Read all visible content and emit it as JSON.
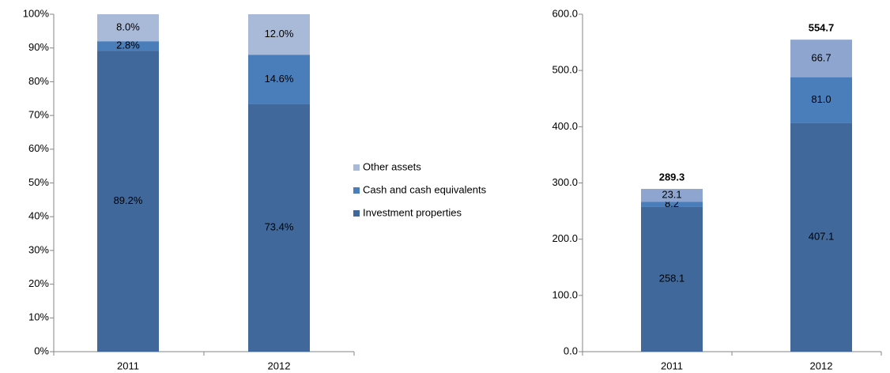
{
  "chart_data": [
    {
      "type": "bar",
      "stacked": true,
      "categories": [
        "2011",
        "2012"
      ],
      "series": [
        {
          "name": "Investment properties",
          "color": "#41689b",
          "values": [
            89.2,
            73.4
          ],
          "value_labels": [
            "89.2%",
            "73.4%"
          ]
        },
        {
          "name": "Cash and cash equivalents",
          "color": "#4a7ebb",
          "values": [
            2.8,
            14.6
          ],
          "value_labels": [
            "2.8%",
            "14.6%"
          ]
        },
        {
          "name": "Other assets",
          "color": "#a9bad9",
          "values": [
            8.0,
            12.0
          ],
          "value_labels": [
            "8.0%",
            "12.0%"
          ]
        }
      ],
      "ylim": [
        0,
        100
      ],
      "yticks": [
        {
          "value": 0,
          "label": "0%"
        },
        {
          "value": 10,
          "label": "10%"
        },
        {
          "value": 20,
          "label": "20%"
        },
        {
          "value": 30,
          "label": "30%"
        },
        {
          "value": 40,
          "label": "40%"
        },
        {
          "value": 50,
          "label": "50%"
        },
        {
          "value": 60,
          "label": "60%"
        },
        {
          "value": 70,
          "label": "70%"
        },
        {
          "value": 80,
          "label": "80%"
        },
        {
          "value": 90,
          "label": "90%"
        },
        {
          "value": 100,
          "label": "100%"
        }
      ],
      "legend": "right"
    },
    {
      "type": "bar",
      "stacked": true,
      "categories": [
        "2011",
        "2012"
      ],
      "series": [
        {
          "color": "#41689b",
          "values": [
            258.1,
            407.1
          ]
        },
        {
          "color": "#4a7ebb",
          "values": [
            8.2,
            81.0
          ],
          "value_labels": [
            "8.2",
            "81.0"
          ]
        },
        {
          "color": "#8da5cf",
          "values": [
            23.1,
            66.7
          ]
        }
      ],
      "totals": [
        289.3,
        554.7
      ],
      "ylim": [
        0,
        600
      ],
      "yticks": [
        {
          "value": 0,
          "label": "0.0"
        },
        {
          "value": 100,
          "label": "100.0"
        },
        {
          "value": 200,
          "label": "200.0"
        },
        {
          "value": 300,
          "label": "300.0"
        },
        {
          "value": 400,
          "label": "400.0"
        },
        {
          "value": 500,
          "label": "500.0"
        },
        {
          "value": 600,
          "label": "600.0"
        }
      ]
    }
  ]
}
